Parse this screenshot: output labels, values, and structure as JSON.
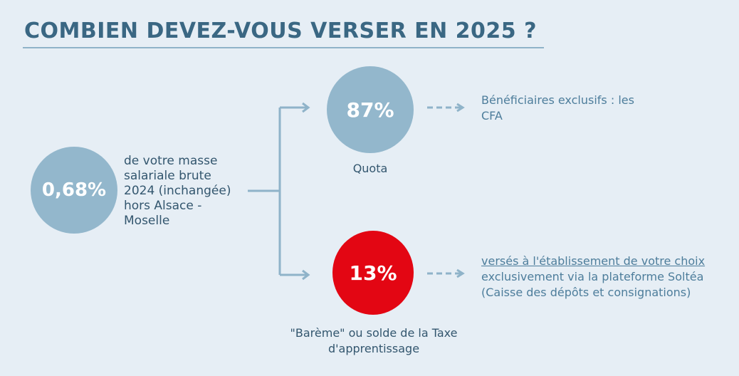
{
  "title": "COMBIEN DEVEZ-VOUS VERSER EN 2025 ?",
  "main": {
    "value": "0,68%",
    "description": "de votre masse salariale brute 2024 (inchangée) hors Alsace - Moselle"
  },
  "quota": {
    "value": "87%",
    "label": "Quota",
    "description": "Bénéficiaires exclusifs : les CFA"
  },
  "bareme": {
    "value": "13%",
    "label": "\"Barème\" ou solde de la Taxe d'apprentissage",
    "description_underlined": "versés à l'établissement de votre choix",
    "description_rest": " exclusivement via la plateforme Soltéa (Caisse des dépôts et consignations)"
  },
  "colors": {
    "background": "#e6eef5",
    "title": "#3a6783",
    "circle_blue": "#93b7cc",
    "circle_red": "#e30613",
    "connector": "#8fb3c9"
  }
}
